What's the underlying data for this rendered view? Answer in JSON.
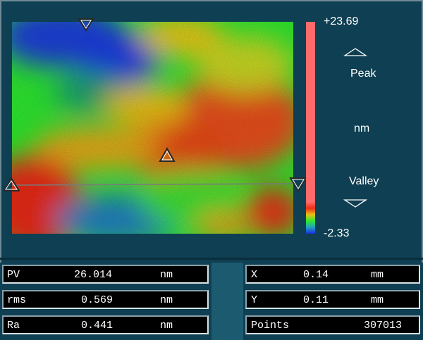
{
  "scale": {
    "max": "+23.69",
    "min": "-2.33",
    "peak_label": "Peak",
    "unit_label": "nm",
    "valley_label": "Valley",
    "up_icon": "triangle-up-outline-icon",
    "down_icon": "triangle-down-outline-icon"
  },
  "map": {
    "description_icon": "surface-height-map",
    "markers": [
      "triangle-down-marker-icon",
      "triangle-marker-icon",
      "triangle-left-marker-icon",
      "triangle-right-marker-icon"
    ],
    "colors": {
      "low": "#1a2ee0",
      "mid": "#2ee830",
      "high": "#e83018",
      "peak": "#ff6a6a"
    }
  },
  "stats": [
    {
      "name": "PV",
      "value": "26.014",
      "unit": "nm"
    },
    {
      "name": "rms",
      "value": "0.569",
      "unit": "nm"
    },
    {
      "name": "Ra",
      "value": "0.441",
      "unit": "nm"
    }
  ],
  "coords": [
    {
      "name": "X",
      "value": "0.14",
      "unit": "mm"
    },
    {
      "name": "Y",
      "value": "0.11",
      "unit": "mm"
    }
  ],
  "points": {
    "name": "Points",
    "value": "307013"
  }
}
